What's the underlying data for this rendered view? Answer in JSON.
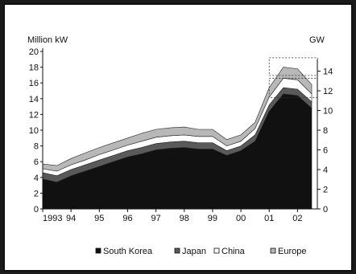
{
  "chart_data": {
    "type": "area",
    "title": "",
    "units": {
      "left": "Million kW",
      "right": "GW"
    },
    "y_left": {
      "min": 0,
      "max": 20,
      "ticks": [
        0,
        2,
        4,
        6,
        8,
        10,
        12,
        14,
        16,
        18,
        20
      ]
    },
    "y_right": {
      "min": 0,
      "max": 16,
      "ticks": [
        0,
        2,
        4,
        6,
        8,
        10,
        12,
        14
      ]
    },
    "x_ticks": [
      {
        "label": "1993",
        "x": 1993
      },
      {
        "label": "94",
        "x": 1994
      },
      {
        "label": "95",
        "x": 1995
      },
      {
        "label": "96",
        "x": 1996
      },
      {
        "label": "97",
        "x": 1997
      },
      {
        "label": "98",
        "x": 1998
      },
      {
        "label": "99",
        "x": 1999
      },
      {
        "label": "00",
        "x": 2000
      },
      {
        "label": "01",
        "x": 2001
      },
      {
        "label": "02",
        "x": 2002
      }
    ],
    "x": [
      1993.0,
      1993.5,
      1994.0,
      1994.5,
      1995.0,
      1995.5,
      1996.0,
      1996.5,
      1997.0,
      1997.5,
      1998.0,
      1998.5,
      1999.0,
      1999.5,
      2000.0,
      2000.5,
      2001.0,
      2001.5,
      2002.0,
      2002.5
    ],
    "series": [
      {
        "name": "South Korea",
        "color": "#111111",
        "values": [
          3.8,
          3.4,
          4.2,
          4.8,
          5.4,
          6.0,
          6.6,
          7.0,
          7.5,
          7.7,
          7.8,
          7.6,
          7.6,
          6.8,
          7.4,
          8.6,
          12.4,
          14.6,
          14.4,
          12.8
        ]
      },
      {
        "name": "Japan",
        "color": "#5a5a5a",
        "values": [
          0.8,
          0.8,
          0.8,
          0.8,
          0.8,
          0.8,
          0.8,
          0.8,
          0.8,
          0.8,
          0.8,
          0.8,
          0.8,
          0.6,
          0.6,
          0.8,
          0.8,
          0.8,
          0.8,
          0.8
        ]
      },
      {
        "name": "China",
        "color": "#ffffff",
        "values": [
          0.5,
          0.6,
          0.6,
          0.6,
          0.7,
          0.7,
          0.7,
          0.8,
          0.8,
          0.8,
          0.8,
          0.8,
          0.8,
          0.6,
          0.6,
          0.8,
          1.0,
          1.2,
          1.2,
          1.0
        ]
      },
      {
        "name": "Europe",
        "color": "#b8b8b8",
        "values": [
          0.6,
          0.7,
          0.8,
          0.9,
          0.9,
          0.9,
          0.9,
          1.0,
          1.0,
          1.0,
          1.0,
          0.9,
          0.9,
          0.8,
          0.8,
          0.8,
          1.2,
          1.4,
          1.4,
          1.2
        ]
      }
    ],
    "legend_position": "bottom",
    "grid": false
  }
}
